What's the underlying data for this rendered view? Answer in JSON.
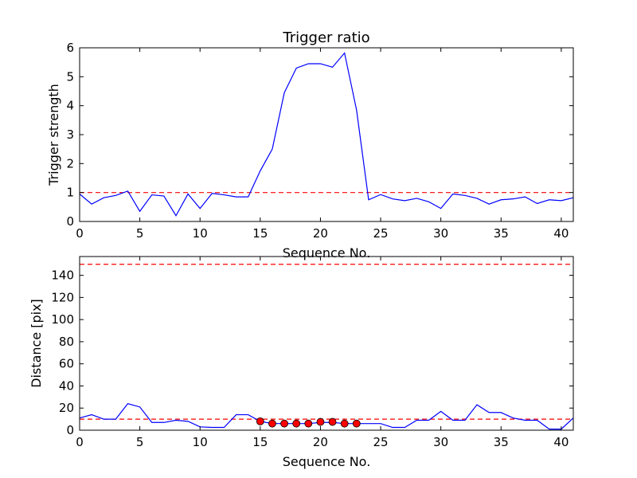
{
  "chart_data": [
    {
      "type": "line",
      "title": "Trigger ratio",
      "xlabel": "Sequence No.",
      "ylabel": "Trigger strength",
      "xlim": [
        0,
        41
      ],
      "ylim": [
        0,
        6
      ],
      "xticks": [
        0,
        5,
        10,
        15,
        20,
        25,
        30,
        35,
        40
      ],
      "yticks": [
        0,
        1,
        2,
        3,
        4,
        5,
        6
      ],
      "grid": false,
      "series": [
        {
          "color": "#0000ff",
          "x": [
            0,
            1,
            2,
            3,
            4,
            5,
            6,
            7,
            8,
            9,
            10,
            11,
            12,
            13,
            14,
            15,
            16,
            17,
            18,
            19,
            20,
            21,
            22,
            23,
            24,
            25,
            26,
            27,
            28,
            29,
            30,
            31,
            32,
            33,
            34,
            35,
            36,
            37,
            38,
            39,
            40,
            41
          ],
          "values": [
            0.95,
            0.6,
            0.82,
            0.9,
            1.05,
            0.35,
            0.92,
            0.88,
            0.2,
            0.95,
            0.45,
            0.97,
            0.92,
            0.85,
            0.85,
            1.75,
            2.5,
            4.45,
            5.3,
            5.45,
            5.45,
            5.33,
            5.82,
            3.85,
            0.75,
            0.93,
            0.78,
            0.72,
            0.8,
            0.68,
            0.45,
            0.95,
            0.9,
            0.8,
            0.6,
            0.75,
            0.78,
            0.85,
            0.62,
            0.75,
            0.72,
            0.82
          ]
        }
      ],
      "reference_lines": [
        {
          "y": 1,
          "color": "#ff0000",
          "style": "dashed"
        }
      ]
    },
    {
      "type": "line",
      "title": "",
      "xlabel": "Sequence No.",
      "ylabel": "Distance [pix]",
      "xlim": [
        0,
        41
      ],
      "ylim": [
        0,
        157
      ],
      "xticks": [
        0,
        5,
        10,
        15,
        20,
        25,
        30,
        35,
        40
      ],
      "yticks": [
        0,
        20,
        40,
        60,
        80,
        100,
        120,
        140
      ],
      "grid": false,
      "series": [
        {
          "color": "#0000ff",
          "x": [
            0,
            1,
            2,
            3,
            4,
            5,
            6,
            7,
            8,
            9,
            10,
            11,
            12,
            13,
            14,
            15,
            16,
            17,
            18,
            19,
            20,
            21,
            22,
            23,
            24,
            25,
            26,
            27,
            28,
            29,
            30,
            31,
            32,
            33,
            34,
            35,
            36,
            37,
            38,
            39,
            40,
            41
          ],
          "values": [
            11,
            14,
            10,
            10,
            24,
            21,
            7,
            7,
            9,
            8,
            3,
            2.5,
            2.5,
            14,
            14,
            8,
            6,
            6,
            6,
            6,
            7,
            7,
            6,
            6,
            6,
            6,
            2.5,
            2.5,
            9,
            9,
            17,
            9,
            9,
            23,
            16,
            16,
            11,
            9,
            9,
            1,
            1,
            11
          ]
        }
      ],
      "points": {
        "color": "#ff0000",
        "x": [
          15,
          16,
          17,
          18,
          19,
          20,
          21,
          22,
          23
        ],
        "values": [
          8,
          6,
          6,
          6,
          6,
          7.5,
          7.5,
          6,
          6
        ]
      },
      "reference_lines": [
        {
          "y": 10,
          "color": "#ff0000",
          "style": "dashed"
        },
        {
          "y": 150,
          "color": "#ff0000",
          "style": "dashed"
        }
      ]
    }
  ]
}
